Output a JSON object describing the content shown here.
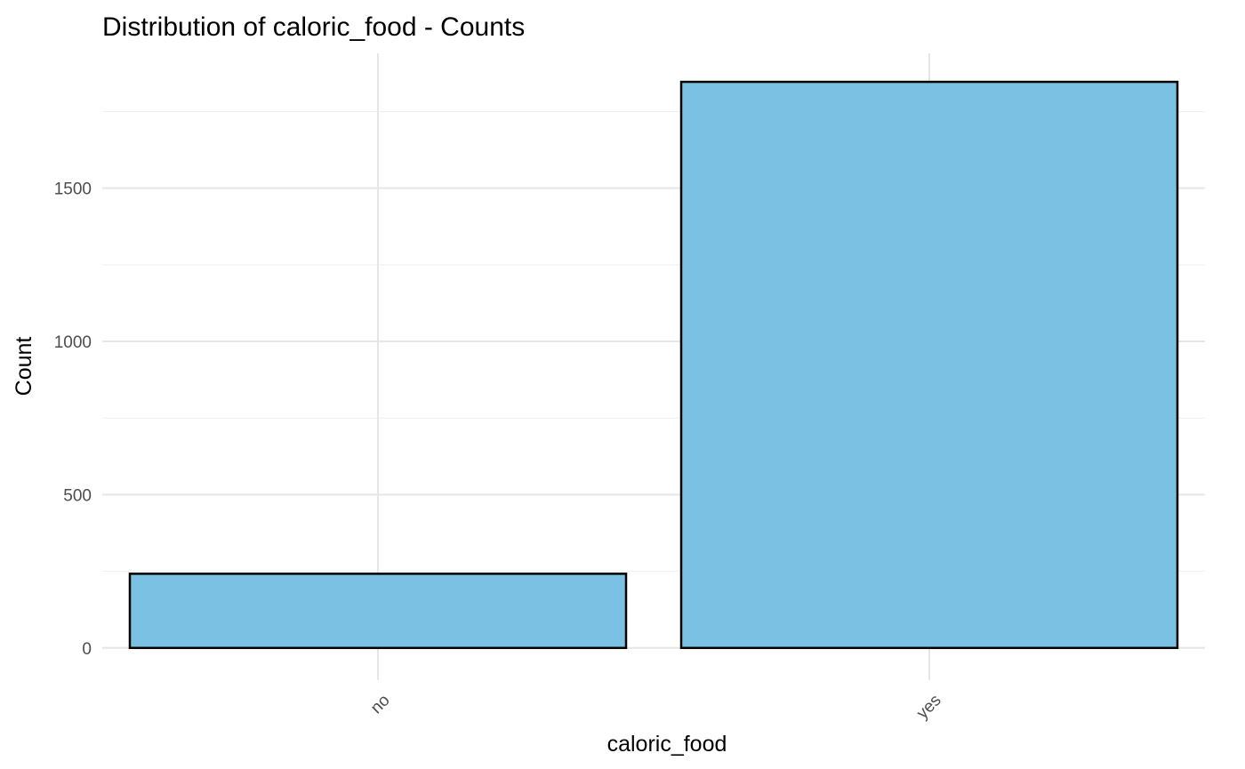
{
  "chart_data": {
    "type": "bar",
    "title": "Distribution of caloric_food - Counts",
    "xlabel": "caloric_food",
    "ylabel": "Count",
    "categories": [
      "no",
      "yes"
    ],
    "values": [
      242,
      1847
    ],
    "ylim": [
      -105,
      1940
    ],
    "yticks": [
      0,
      500,
      1000,
      1500
    ],
    "yticks_minor": [
      250,
      750,
      1250,
      1750
    ],
    "grid": true,
    "bar_fill": "#7BC1E4",
    "bar_stroke": "#000000",
    "x_tick_rotation": 45
  }
}
